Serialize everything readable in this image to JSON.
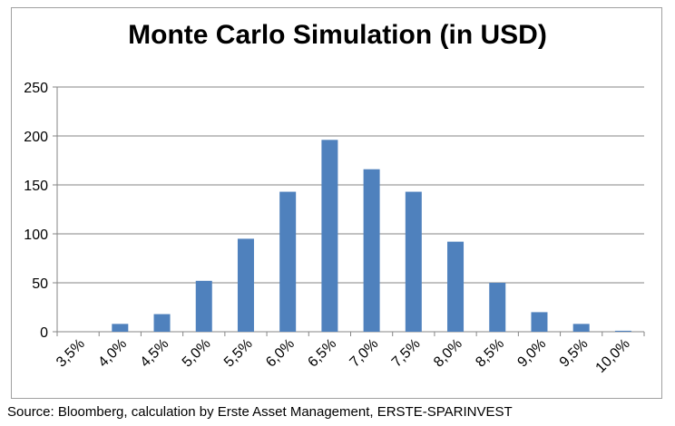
{
  "chart_data": {
    "type": "bar",
    "title": "Monte Carlo Simulation (in USD)",
    "xlabel": "",
    "ylabel": "",
    "ylim": [
      0,
      250
    ],
    "yticks": [
      0,
      50,
      100,
      150,
      200,
      250
    ],
    "grid": true,
    "legend": "none",
    "bar_color": "#4f81bd",
    "categories": [
      "3,5%",
      "4,0%",
      "4,5%",
      "5,0%",
      "5,5%",
      "6,0%",
      "6,5%",
      "7,0%",
      "7,5%",
      "8,0%",
      "8,5%",
      "9,0%",
      "9,5%",
      "10,0%"
    ],
    "values": [
      0,
      8,
      18,
      52,
      95,
      143,
      196,
      166,
      143,
      92,
      50,
      20,
      8,
      1
    ]
  },
  "footer": {
    "source": "Source: Bloomberg, calculation by Erste Asset Management, ERSTE-SPARINVEST"
  }
}
